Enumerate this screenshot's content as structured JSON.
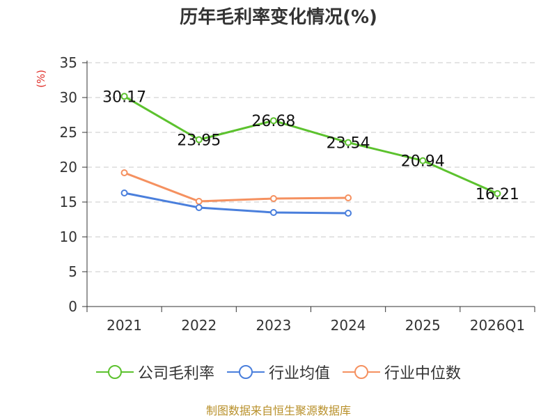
{
  "chart_data": {
    "type": "line",
    "title": "历年毛利率变化情况(%)",
    "ylabel": "(%)",
    "xlabel": "",
    "categories": [
      "2021",
      "2022",
      "2023",
      "2024",
      "2025",
      "2026Q1"
    ],
    "ylim": [
      0,
      35
    ],
    "yticks": [
      0,
      5,
      10,
      15,
      20,
      25,
      30,
      35
    ],
    "grid": true,
    "legend_position": "bottom",
    "series": [
      {
        "name": "公司毛利率",
        "color": "#5cc22e",
        "values": [
          30.17,
          23.95,
          26.68,
          23.54,
          20.94,
          16.21
        ],
        "labels": [
          "30.17",
          "23.95",
          "26.68",
          "23.54",
          "20.94",
          "16.21"
        ]
      },
      {
        "name": "行业均值",
        "color": "#4a7fdc",
        "values": [
          16.3,
          14.2,
          13.5,
          13.4,
          null,
          null
        ]
      },
      {
        "name": "行业中位数",
        "color": "#f59160",
        "values": [
          19.2,
          15.1,
          15.5,
          15.6,
          null,
          null
        ]
      }
    ]
  },
  "source": "制图数据来自恒生聚源数据库"
}
